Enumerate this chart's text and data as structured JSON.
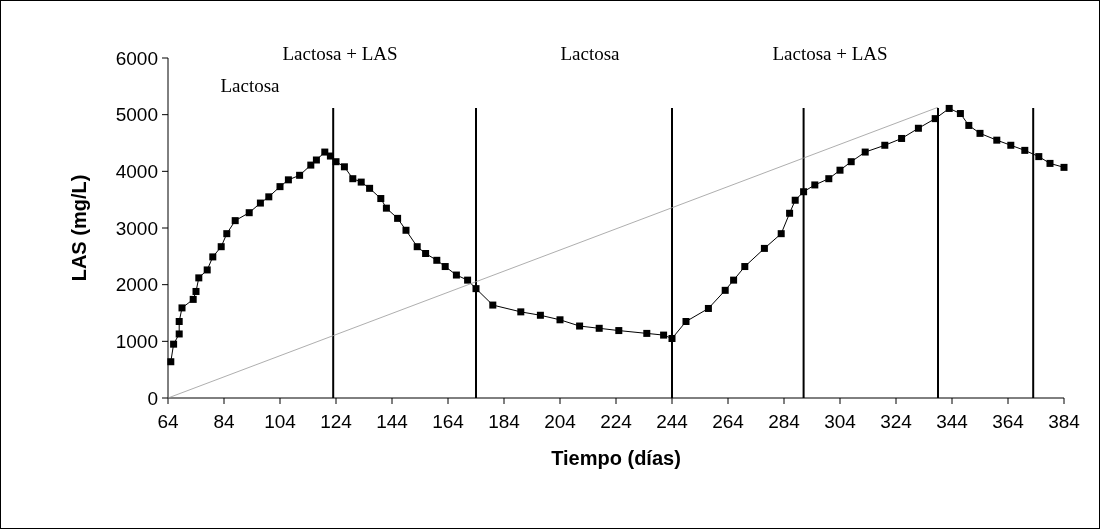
{
  "chart_data": {
    "type": "line",
    "xlabel": "Tiempo (días)",
    "ylabel": "LAS (mg/L)",
    "xlim": [
      64,
      384
    ],
    "ylim": [
      0,
      6000
    ],
    "xticks": [
      64,
      84,
      104,
      124,
      144,
      164,
      184,
      204,
      224,
      244,
      264,
      284,
      304,
      324,
      344,
      364,
      384
    ],
    "yticks": [
      0,
      1000,
      2000,
      3000,
      4000,
      5000,
      6000
    ],
    "grid": false,
    "marker": "square",
    "series": [
      {
        "color": "#000000",
        "x": [
          65,
          66,
          68,
          68,
          69,
          73,
          74,
          75,
          78,
          80,
          83,
          85,
          88,
          93,
          97,
          100,
          104,
          107,
          111,
          115,
          117,
          120,
          122,
          124,
          127,
          130,
          133,
          136,
          140,
          142,
          146,
          149,
          153,
          156,
          160,
          163,
          167,
          171,
          174,
          180,
          190,
          197,
          204,
          211,
          218,
          225,
          235,
          241,
          244,
          249,
          257,
          263,
          266,
          270,
          277,
          283,
          286,
          288,
          291,
          295,
          300,
          304,
          308,
          313,
          320,
          326,
          332,
          338,
          343,
          347,
          350,
          354,
          360,
          365,
          370,
          375,
          379,
          384
        ],
        "values": [
          640,
          950,
          1130,
          1350,
          1590,
          1740,
          1880,
          2120,
          2260,
          2490,
          2670,
          2900,
          3130,
          3270,
          3440,
          3550,
          3730,
          3850,
          3930,
          4110,
          4200,
          4340,
          4270,
          4170,
          4080,
          3870,
          3810,
          3700,
          3520,
          3350,
          3170,
          2960,
          2670,
          2550,
          2430,
          2320,
          2170,
          2080,
          1930,
          1640,
          1520,
          1460,
          1380,
          1270,
          1230,
          1190,
          1140,
          1110,
          1050,
          1350,
          1580,
          1900,
          2080,
          2320,
          2640,
          2900,
          3260,
          3490,
          3640,
          3760,
          3870,
          4020,
          4170,
          4340,
          4460,
          4580,
          4760,
          4930,
          5110,
          5020,
          4810,
          4670,
          4550,
          4460,
          4370,
          4260,
          4140,
          4070
        ]
      },
      {
        "type": "line",
        "color": "#999999",
        "marker": "none",
        "x": [
          64,
          339
        ],
        "values": [
          0,
          5130
        ]
      }
    ],
    "ref_lines": [
      {
        "axis": "x",
        "value": 123,
        "color": "#000000"
      },
      {
        "axis": "x",
        "value": 174,
        "color": "#000000"
      },
      {
        "axis": "x",
        "value": 244,
        "color": "#000000"
      },
      {
        "axis": "x",
        "value": 291,
        "color": "#000000"
      },
      {
        "axis": "x",
        "value": 339,
        "color": "#000000"
      },
      {
        "axis": "x",
        "value": 373,
        "color": "#000000"
      }
    ],
    "annotations": [
      "Lactosa",
      "Lactosa + LAS",
      "Lactosa",
      "Lactosa + LAS"
    ]
  }
}
